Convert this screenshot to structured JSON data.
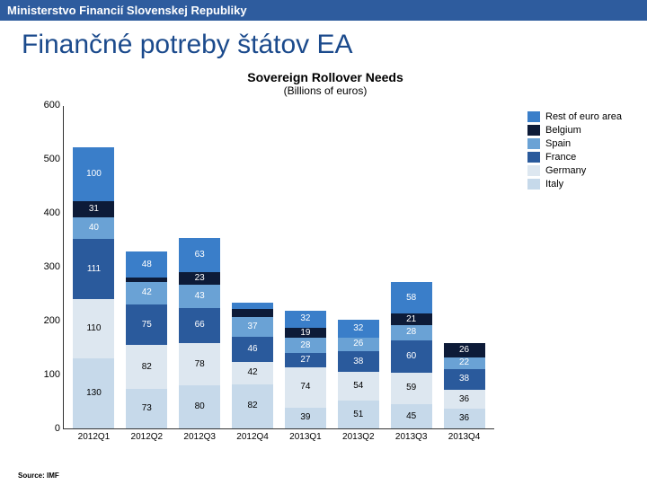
{
  "header": {
    "text": "Ministerstvo Financií Slovenskej Republiky"
  },
  "title": "Finančné potreby štátov EA",
  "chart": {
    "type": "stacked-bar",
    "title": "Sovereign Rollover Needs",
    "subtitle": "(Billions of euros)",
    "ylim": [
      0,
      600
    ],
    "ytick_step": 100,
    "yticks": [
      0,
      100,
      200,
      300,
      400,
      500,
      600
    ],
    "categories": [
      "2012Q1",
      "2012Q2",
      "2012Q3",
      "2012Q4",
      "2013Q1",
      "2013Q2",
      "2013Q3",
      "2013Q4"
    ],
    "series": [
      {
        "name": "Italy",
        "color": "#c6d9ea",
        "textDark": false
      },
      {
        "name": "Germany",
        "color": "#dde7f0",
        "textDark": false
      },
      {
        "name": "France",
        "color": "#2a5a9c",
        "textDark": true
      },
      {
        "name": "Spain",
        "color": "#6aa2d5",
        "textDark": true
      },
      {
        "name": "Belgium",
        "color": "#0d1b38",
        "textDark": true
      },
      {
        "name": "Rest of euro area",
        "color": "#3a7ec9",
        "textDark": true
      }
    ],
    "stacks": [
      [
        130,
        110,
        111,
        40,
        31,
        100
      ],
      [
        73,
        82,
        75,
        42,
        8,
        48
      ],
      [
        80,
        78,
        66,
        43,
        23,
        63
      ],
      [
        82,
        42,
        46,
        37,
        14,
        13
      ],
      [
        39,
        74,
        27,
        28,
        19,
        32
      ],
      [
        51,
        54,
        38,
        26,
        0,
        32
      ],
      [
        45,
        59,
        60,
        28,
        21,
        58
      ],
      [
        36,
        36,
        38,
        22,
        26,
        0
      ]
    ],
    "source": "Source: IMF"
  },
  "colors": {
    "header_bg": "#2e5c9e",
    "title_color": "#1b4a8c"
  }
}
